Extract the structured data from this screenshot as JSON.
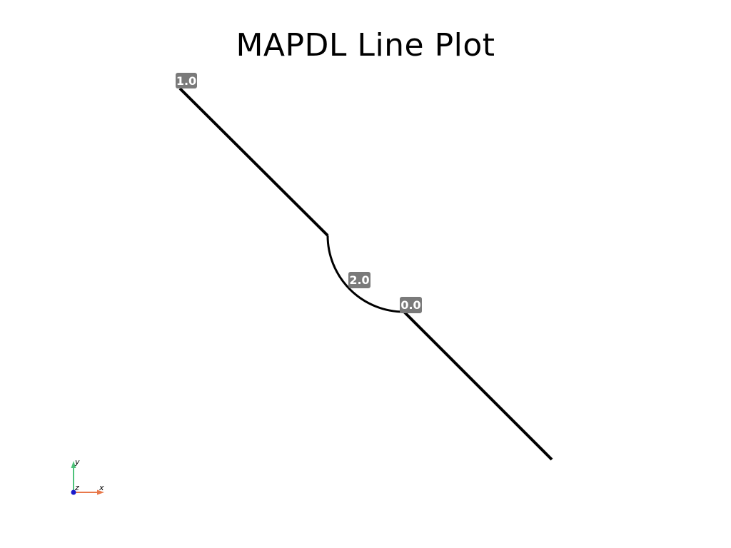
{
  "title": "MAPDL Line Plot",
  "lines": [
    {
      "name": "line-1",
      "shape": "straight"
    },
    {
      "name": "line-arc",
      "shape": "arc"
    },
    {
      "name": "line-2",
      "shape": "straight"
    }
  ],
  "labels": [
    {
      "text": "1.0"
    },
    {
      "text": "2.0"
    },
    {
      "text": "0.0"
    }
  ],
  "axes": {
    "x": "x",
    "y": "y",
    "z": "z",
    "x_color": "#e8784a",
    "y_color": "#4ec27a",
    "z_color": "#1a1acc"
  },
  "colors": {
    "line": "#000000",
    "label_bg": "#7a7a7a",
    "label_text": "#ffffff"
  }
}
